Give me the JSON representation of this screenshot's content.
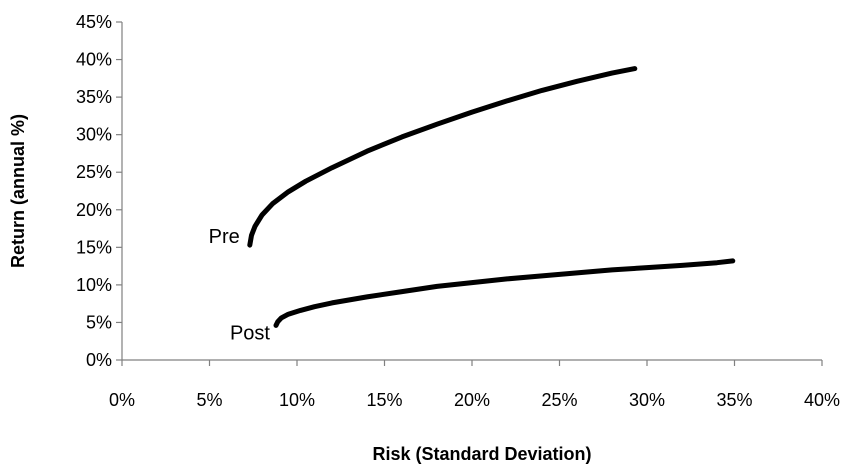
{
  "chart_data": {
    "type": "line",
    "title": "",
    "xlabel": "Risk (Standard Deviation)",
    "ylabel": "Return (annual %)",
    "xlim": [
      0,
      40
    ],
    "ylim": [
      0,
      45
    ],
    "x_ticks": [
      "0%",
      "5%",
      "10%",
      "15%",
      "20%",
      "25%",
      "30%",
      "35%",
      "40%"
    ],
    "y_ticks": [
      "0%",
      "5%",
      "10%",
      "15%",
      "20%",
      "25%",
      "30%",
      "35%",
      "40%",
      "45%"
    ],
    "grid": false,
    "legend": "none",
    "series": [
      {
        "name": "Pre",
        "x": [
          7.3,
          7.4,
          7.6,
          8.0,
          8.6,
          9.5,
          10.5,
          12.0,
          14.0,
          16.0,
          18.0,
          20.0,
          22.0,
          24.0,
          26.0,
          28.0,
          29.3
        ],
        "y": [
          15.3,
          16.6,
          17.8,
          19.3,
          20.8,
          22.4,
          23.8,
          25.6,
          27.8,
          29.7,
          31.4,
          33.0,
          34.5,
          35.9,
          37.1,
          38.2,
          38.8
        ]
      },
      {
        "name": "Post",
        "x": [
          8.8,
          8.9,
          9.1,
          9.5,
          10.2,
          11.0,
          12.0,
          14.0,
          16.0,
          18.0,
          20.0,
          22.0,
          24.0,
          26.0,
          28.0,
          30.0,
          32.0,
          34.0,
          34.9
        ],
        "y": [
          4.6,
          5.1,
          5.6,
          6.1,
          6.6,
          7.1,
          7.6,
          8.4,
          9.1,
          9.8,
          10.3,
          10.8,
          11.2,
          11.6,
          12.0,
          12.3,
          12.6,
          12.95,
          13.2
        ]
      }
    ]
  },
  "series_labels": {
    "pre": "Pre",
    "post": "Post"
  }
}
